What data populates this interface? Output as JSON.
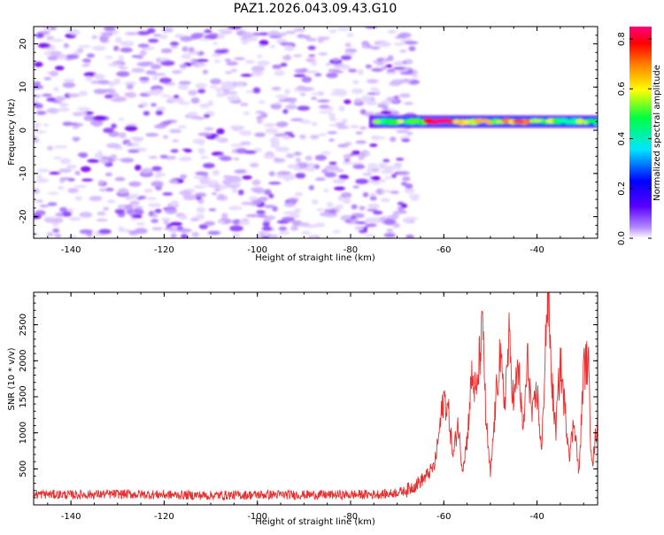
{
  "title": "PAZ1.2026.043.09.43.G10",
  "chart_data": [
    {
      "type": "heatmap",
      "title": "PAZ1.2026.043.09.43.G10",
      "xlabel": "Height of straight line (km)",
      "ylabel": "Frequency (Hz)",
      "xlim": [
        -148,
        -27
      ],
      "ylim": [
        -25,
        24
      ],
      "xticks": [
        -140,
        -120,
        -100,
        -80,
        -60,
        -40
      ],
      "yticks": [
        -20,
        -10,
        0,
        10,
        20
      ],
      "x_tick_labels": [
        "-140",
        "-120",
        "-100",
        "-80",
        "-60",
        "-40"
      ],
      "y_tick_labels": [
        "-20",
        "-10",
        "0",
        "10",
        "20"
      ],
      "noise_region": {
        "x_range": [
          -148,
          -66
        ],
        "freq_range": [
          -25,
          24
        ],
        "amplitude_range": [
          0.0,
          0.15
        ]
      },
      "signal_band": {
        "x_range": [
          -76,
          -27
        ],
        "center_freq_hz": 2,
        "peak_amplitude": 0.85,
        "peak_x": -61
      },
      "colorbar": {
        "label": "Normalized spectral amplitude",
        "range": [
          0.0,
          0.85
        ],
        "ticks": [
          0.0,
          0.2,
          0.4,
          0.6,
          0.8
        ],
        "tick_labels": [
          "0.0",
          "0.2",
          "0.4",
          "0.6",
          "0.8"
        ],
        "colors": [
          "#ffffff",
          "#7a00ff",
          "#0000ff",
          "#00ffff",
          "#00ff00",
          "#ffff00",
          "#ff8000",
          "#ff0000",
          "#ff0080"
        ]
      }
    },
    {
      "type": "line",
      "xlabel": "Height of straight line (km)",
      "ylabel": "SNR (10 * v/v)",
      "xlim": [
        -148,
        -27
      ],
      "ylim": [
        0,
        2950
      ],
      "xticks": [
        -140,
        -120,
        -100,
        -80,
        -60,
        -40
      ],
      "yticks": [
        500,
        1000,
        1500,
        2000,
        2500
      ],
      "x_tick_labels": [
        "-140",
        "-120",
        "-100",
        "-80",
        "-60",
        "-40"
      ],
      "y_tick_labels": [
        "500",
        "1000",
        "1500",
        "2000",
        "2500"
      ],
      "color": "#e83030",
      "series": [
        {
          "name": "SNR",
          "x": [
            -148,
            -140,
            -130,
            -120,
            -110,
            -100,
            -90,
            -80,
            -72,
            -68,
            -66,
            -64,
            -62,
            -61,
            -60,
            -59,
            -58,
            -57,
            -56,
            -55,
            -54,
            -53,
            -52,
            -51.5,
            -51,
            -50,
            -49,
            -48,
            -47,
            -46,
            -45,
            -44,
            -43,
            -42,
            -41,
            -40,
            -39,
            -38,
            -37.5,
            -37,
            -36,
            -35,
            -34,
            -33,
            -32,
            -31,
            -30,
            -29,
            -28.5,
            -28,
            -27
          ],
          "y": [
            150,
            140,
            150,
            140,
            130,
            140,
            140,
            140,
            150,
            200,
            280,
            380,
            540,
            1000,
            1500,
            1300,
            650,
            1150,
            500,
            900,
            1800,
            1500,
            2300,
            2400,
            1200,
            400,
            1300,
            2100,
            1400,
            2300,
            1400,
            1950,
            1000,
            2000,
            1200,
            1600,
            700,
            2600,
            2900,
            1900,
            1000,
            2000,
            1300,
            700,
            1200,
            400,
            1900,
            2000,
            900,
            600,
            1200
          ]
        }
      ]
    }
  ]
}
